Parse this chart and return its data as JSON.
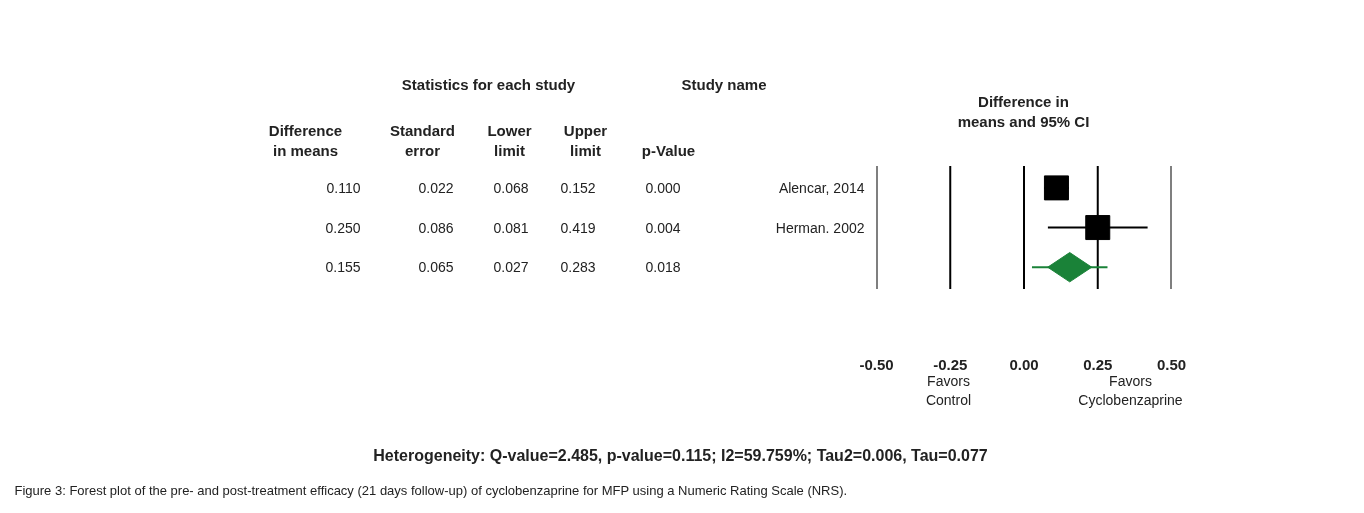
{
  "chart_data": {
    "type": "scatter",
    "orientation": "horizontal",
    "title": "Difference in means and 95% CI",
    "categories": [
      "Alencar, 2014",
      "Herman. 2002",
      null
    ],
    "series": [
      {
        "values": [
          0.11,
          0.25,
          null
        ],
        "color": "#000000",
        "marker": "square",
        "errors": [
          [
            0.068,
            0.152
          ],
          [
            0.081,
            0.419
          ],
          null
        ]
      },
      {
        "values": [
          null,
          null,
          0.155
        ],
        "color": "#1a8238",
        "marker": "diamond",
        "errors": [
          null,
          null,
          [
            0.027,
            0.283
          ]
        ]
      }
    ],
    "value_labels": [
      "0.110",
      "0.250",
      "0.155"
    ],
    "xlim": [
      -0.5,
      0.5
    ],
    "xticks": [
      {
        "value": -0.5,
        "label": "-0.50"
      },
      {
        "value": -0.25,
        "label": "-0.25"
      },
      {
        "value": 0,
        "label": "0.00"
      },
      {
        "value": 0.25,
        "label": "0.25"
      },
      {
        "value": 0.5,
        "label": "0.50"
      }
    ],
    "grid": "x",
    "annotations": [
      "Study name",
      "Statistics for each study",
      "Difference in means",
      "Standard error",
      "Lower limit",
      "Upper limit",
      "p-Value",
      "0.022",
      "0.086",
      "0.065",
      "0.068",
      "0.081",
      "0.027",
      "0.152",
      "0.419",
      "0.283",
      "0.000",
      "0.004",
      "0.018",
      "Favors Control",
      "Favors Cyclobenzaprine",
      "Heterogeneity: Q-value=2.485, p-value=0.115; I2=59.759%; Tau2=0.006, Tau=0.077",
      "Figure 3: Forest plot of the pre- and post-treatment efficacy (21 days follow-up) of cyclobenzaprine for MFP using a Numeric Rating Scale (NRS)."
    ]
  }
}
